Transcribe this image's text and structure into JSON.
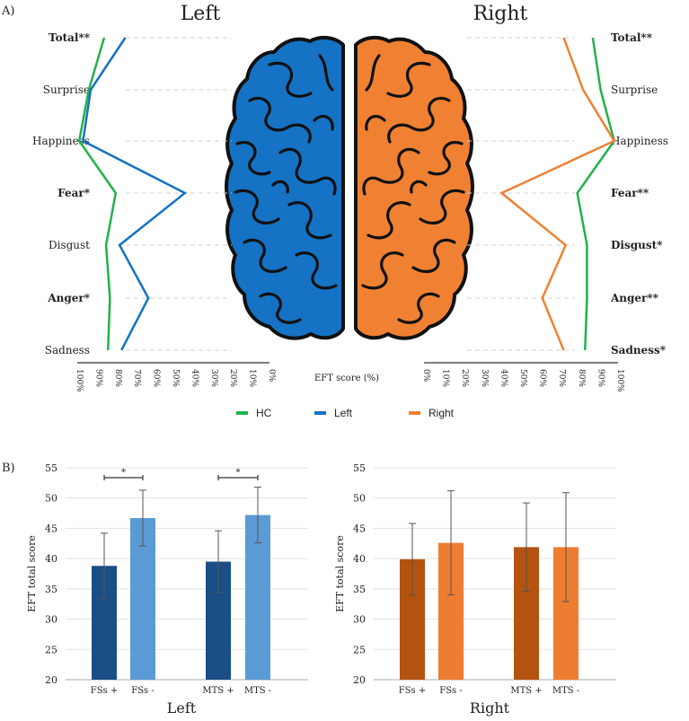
{
  "panel_a_label": "A)",
  "panel_b_label": "B)",
  "colors": {
    "hc": "#21b24b",
    "left": "#1572c4",
    "right": "#f08133",
    "left_dark": "#1a4f86",
    "left_light": "#5b9bd5",
    "right_dark": "#b4530f",
    "right_light": "#ee7d31"
  },
  "chart_data": [
    {
      "type": "line",
      "title_left": "Left",
      "title_right": "Right",
      "xlabel": "EFT score (%)",
      "categories": [
        "Total",
        "Surprise",
        "Happiness",
        "Fear",
        "Disgust",
        "Anger",
        "Sadness"
      ],
      "category_labels_left": [
        "Total**",
        "Surprise",
        "Happiness",
        "Fear*",
        "Disgust",
        "Anger*",
        "Sadness"
      ],
      "category_bold_left": [
        true,
        false,
        false,
        true,
        false,
        true,
        false
      ],
      "category_labels_right": [
        "Total**",
        "Surprise",
        "Happiness",
        "Fear**",
        "Disgust*",
        "Anger**",
        "Sadness*"
      ],
      "category_bold_right": [
        true,
        false,
        false,
        true,
        true,
        true,
        true
      ],
      "ticks_left": [
        "100%",
        "90%",
        "80%",
        "70%",
        "60%",
        "50%",
        "40%",
        "30%",
        "20%",
        "10%",
        "0%"
      ],
      "ticks_right": [
        "0%",
        "10%",
        "20%",
        "30%",
        "40%",
        "50%",
        "60%",
        "70%",
        "80%",
        "90%",
        "100%"
      ],
      "xlim": [
        0,
        100
      ],
      "left_side": [
        {
          "name": "HC",
          "values": [
            86,
            94,
            99,
            80,
            85,
            83,
            84
          ]
        },
        {
          "name": "Left",
          "values": [
            75,
            93,
            97,
            44,
            78,
            63,
            77
          ]
        }
      ],
      "right_side": [
        {
          "name": "HC",
          "values": [
            87,
            91,
            98,
            79,
            84,
            84,
            83
          ]
        },
        {
          "name": "Right",
          "values": [
            72,
            82,
            98,
            40,
            73,
            61,
            72
          ]
        }
      ],
      "legend": [
        "HC",
        "Left",
        "Right"
      ]
    },
    {
      "type": "bar",
      "subtitle": "Left",
      "ylabel": "EFT total score",
      "ylim": [
        20,
        55
      ],
      "yticks": [
        "20",
        "25",
        "30",
        "35",
        "40",
        "45",
        "50",
        "55"
      ],
      "categories": [
        "FSs +",
        "FSs -",
        "MTS +",
        "MTS -"
      ],
      "values": [
        38.8,
        46.7,
        39.5,
        47.2
      ],
      "errors": [
        5.4,
        4.6,
        5.1,
        4.6
      ],
      "significance": [
        "*",
        "*"
      ]
    },
    {
      "type": "bar",
      "subtitle": "Right",
      "ylabel": "EFT total score",
      "ylim": [
        20,
        55
      ],
      "yticks": [
        "20",
        "25",
        "30",
        "35",
        "40",
        "45",
        "50",
        "55"
      ],
      "categories": [
        "FSs +",
        "FSs -",
        "MTS +",
        "MTS -"
      ],
      "values": [
        39.9,
        42.6,
        41.9,
        41.9
      ],
      "errors": [
        5.9,
        8.6,
        7.3,
        9.0
      ]
    }
  ]
}
